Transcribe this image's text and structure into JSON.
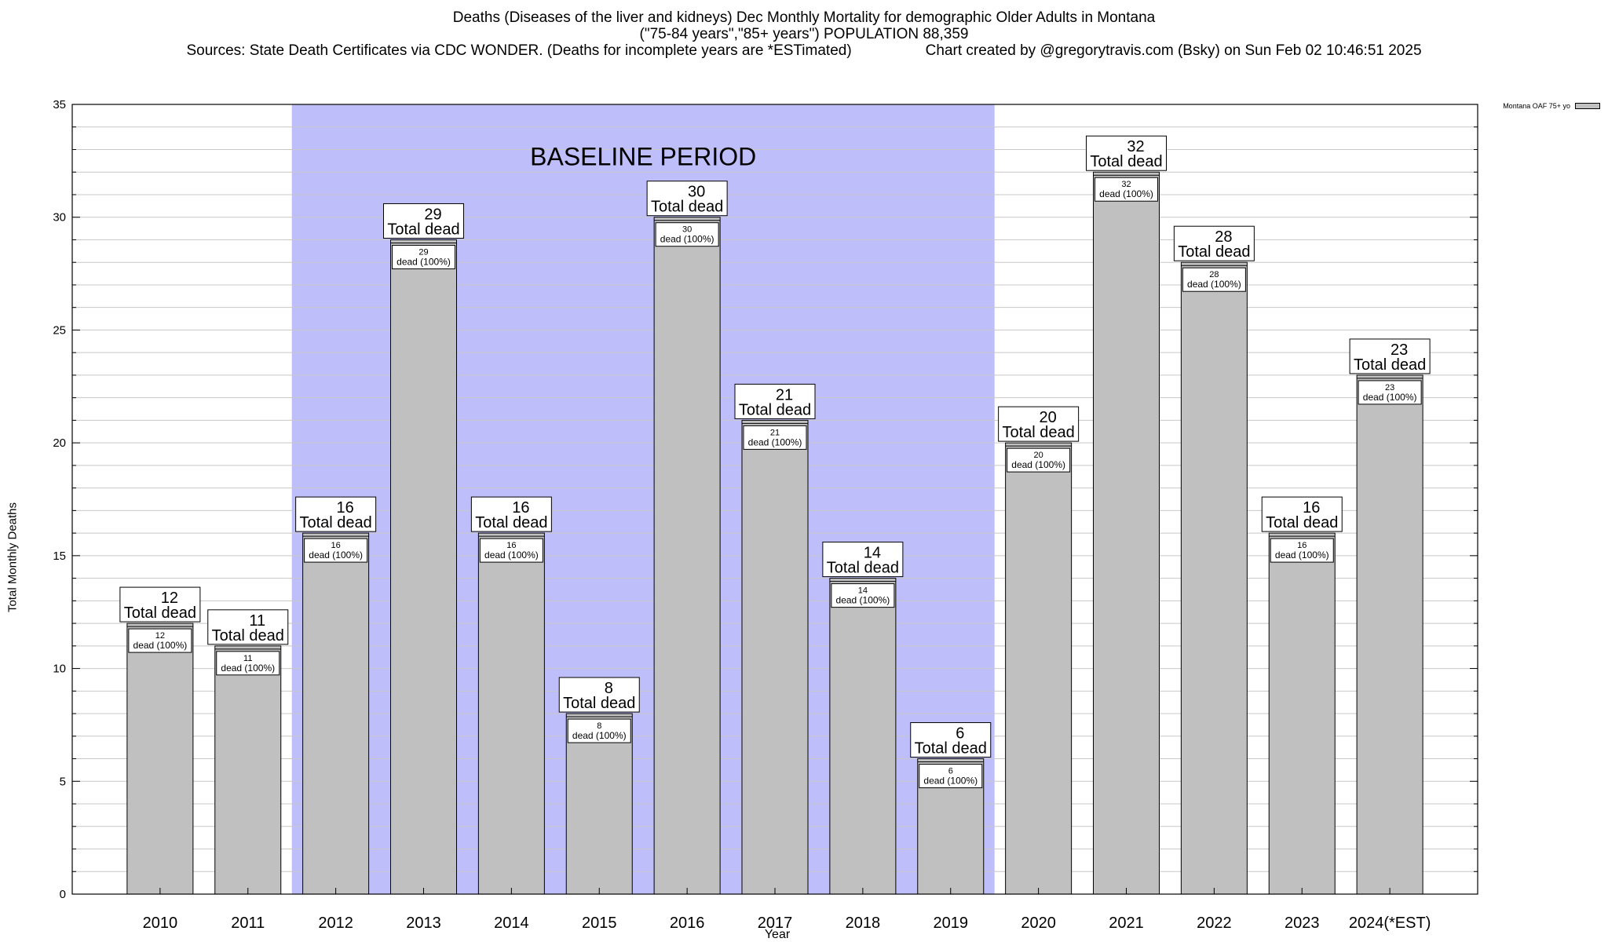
{
  "header": {
    "title": "Deaths (Diseases of the liver and kidneys) Dec Monthly Mortality for demographic Older Adults in Montana",
    "subtitle": "(\"75-84 years\",\"85+ years\") POPULATION 88,359",
    "sources": "Sources: State Death Certificates via CDC WONDER. (Deaths for incomplete years are *ESTimated)",
    "credit": "Chart created by @gregorytravis.com (Bsky) on Sun Feb 02 10:46:51 2025"
  },
  "chart_data": {
    "type": "bar",
    "categories": [
      "2010",
      "2011",
      "2012",
      "2013",
      "2014",
      "2015",
      "2016",
      "2017",
      "2018",
      "2019",
      "2020",
      "2021",
      "2022",
      "2023",
      "2024(*EST)"
    ],
    "series": [
      {
        "name": "Montana OAF 75+ yo",
        "values": [
          12,
          11,
          16,
          29,
          16,
          8,
          30,
          21,
          14,
          6,
          20,
          32,
          28,
          16,
          23
        ]
      }
    ],
    "top_label_suffix": "Total dead",
    "inner_label_suffix": "dead (100%)",
    "xlabel": "Year",
    "ylabel": "Total Monthly Deaths",
    "ylim": [
      0,
      35
    ],
    "yticks": [
      0,
      5,
      10,
      15,
      20,
      25,
      30,
      35
    ],
    "baseline_period": {
      "label": "BASELINE PERIOD",
      "from": "2012",
      "to": "2019"
    },
    "grid": true,
    "legend": "top-right",
    "colors": {
      "bar": "#c0c0c0",
      "baseline": "#bebefa",
      "grid": "#c8c8c8"
    }
  }
}
